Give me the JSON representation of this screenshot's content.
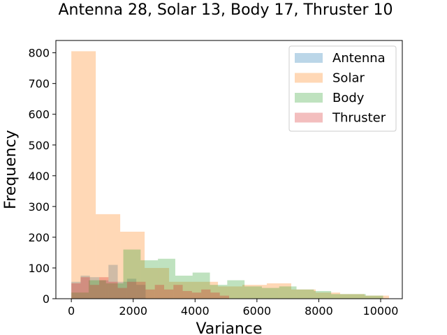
{
  "chart_data": {
    "type": "histogram",
    "title": "Antenna 28, Solar 13, Body 17, Thruster 10",
    "xlabel": "Variance",
    "ylabel": "Frequency",
    "xlim": [
      -500,
      10700
    ],
    "ylim": [
      0,
      840
    ],
    "x_ticks": [
      0,
      2000,
      4000,
      6000,
      8000,
      10000
    ],
    "y_ticks": [
      0,
      100,
      200,
      300,
      400,
      500,
      600,
      700,
      800
    ],
    "grid": false,
    "legend_position": "top-right",
    "series": [
      {
        "name": "Antenna",
        "color": "#1f77b4",
        "opacity": 0.3,
        "bin_edges": [
          0,
          300,
          600,
          900,
          1200,
          1500,
          1800,
          2100,
          2400
        ],
        "counts": [
          55,
          75,
          70,
          60,
          110,
          55,
          65,
          45
        ]
      },
      {
        "name": "Solar",
        "color": "#ff7f0e",
        "opacity": 0.3,
        "bin_edges": [
          0,
          790,
          1580,
          2370,
          3160,
          3950,
          4740,
          5530,
          6320,
          7110,
          7900,
          8690,
          9480,
          10270
        ],
        "counts": [
          805,
          275,
          218,
          100,
          55,
          55,
          40,
          45,
          50,
          30,
          20,
          15,
          10
        ]
      },
      {
        "name": "Body",
        "color": "#2ca02c",
        "opacity": 0.3,
        "bin_edges": [
          0,
          560,
          1120,
          1680,
          2240,
          2800,
          3360,
          3920,
          4480,
          5040,
          5600,
          6160,
          6720,
          7280,
          7840,
          8400,
          8960,
          9520,
          10080
        ],
        "counts": [
          20,
          60,
          50,
          160,
          125,
          130,
          75,
          85,
          45,
          60,
          40,
          35,
          40,
          30,
          25,
          15,
          15,
          10
        ]
      },
      {
        "name": "Thruster",
        "color": "#d62728",
        "opacity": 0.3,
        "bin_edges": [
          0,
          300,
          600,
          900,
          1200,
          1500,
          1800,
          2100,
          2400,
          2700,
          3000,
          3300,
          3600,
          3900,
          4200,
          4500,
          4800,
          5100
        ],
        "counts": [
          50,
          70,
          45,
          70,
          55,
          35,
          55,
          55,
          30,
          45,
          30,
          45,
          25,
          20,
          30,
          20,
          10
        ]
      }
    ]
  }
}
